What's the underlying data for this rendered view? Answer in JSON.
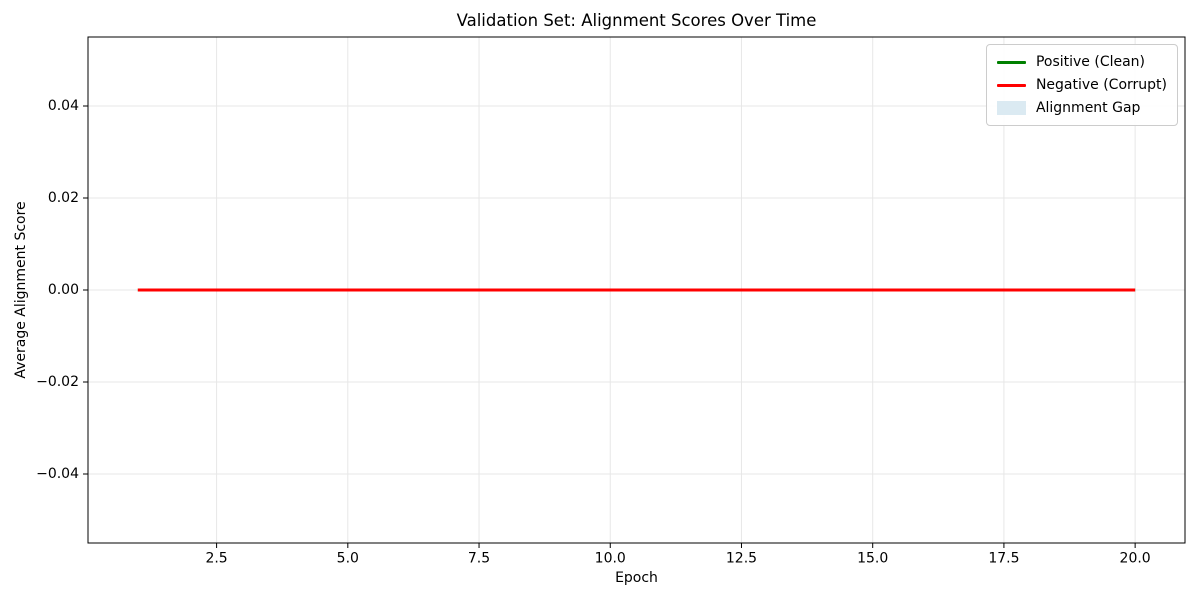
{
  "figure": {
    "title": "Validation Set: Alignment Scores Over Time",
    "xlabel": "Epoch",
    "ylabel": "Average Alignment Score"
  },
  "legend": {
    "items": [
      {
        "label": "Positive (Clean)",
        "type": "line",
        "color": "#008000"
      },
      {
        "label": "Negative (Corrupt)",
        "type": "line",
        "color": "#ff0000"
      },
      {
        "label": "Alignment Gap",
        "type": "patch",
        "color": "#dbeaf2"
      }
    ]
  },
  "chart_data": {
    "type": "line",
    "title": "Validation Set: Alignment Scores Over Time",
    "xlabel": "Epoch",
    "ylabel": "Average Alignment Score",
    "x": [
      1,
      2,
      3,
      4,
      5,
      6,
      7,
      8,
      9,
      10,
      11,
      12,
      13,
      14,
      15,
      16,
      17,
      18,
      19,
      20
    ],
    "series": [
      {
        "name": "Positive (Clean)",
        "color": "#008000",
        "linewidth": 3,
        "values": [
          0.0,
          0.0,
          0.0,
          0.0,
          0.0,
          0.0,
          0.0,
          0.0,
          0.0,
          0.0,
          0.0,
          0.0,
          0.0,
          0.0,
          0.0,
          0.0,
          0.0,
          0.0,
          0.0,
          0.0
        ]
      },
      {
        "name": "Negative (Corrupt)",
        "color": "#ff0000",
        "linewidth": 3,
        "values": [
          0.0,
          0.0,
          0.0,
          0.0,
          0.0,
          0.0,
          0.0,
          0.0,
          0.0,
          0.0,
          0.0,
          0.0,
          0.0,
          0.0,
          0.0,
          0.0,
          0.0,
          0.0,
          0.0,
          0.0
        ]
      }
    ],
    "fill_between": {
      "name": "Alignment Gap",
      "color": "#add8e6",
      "alpha": 0.3
    },
    "xlim": [
      0.05,
      20.95
    ],
    "ylim": [
      -0.055,
      0.055
    ],
    "xticks": [
      2.5,
      5.0,
      7.5,
      10.0,
      12.5,
      15.0,
      17.5,
      20.0
    ],
    "xtick_labels": [
      "2.5",
      "5.0",
      "7.5",
      "10.0",
      "12.5",
      "15.0",
      "17.5",
      "20.0"
    ],
    "yticks": [
      -0.04,
      -0.02,
      0.0,
      0.02,
      0.04
    ],
    "ytick_labels": [
      "−0.04",
      "−0.02",
      "0.00",
      "0.02",
      "0.04"
    ],
    "grid": true,
    "grid_color": "#e7e7e7",
    "spine_color": "#000000",
    "legend_position": "upper right"
  }
}
